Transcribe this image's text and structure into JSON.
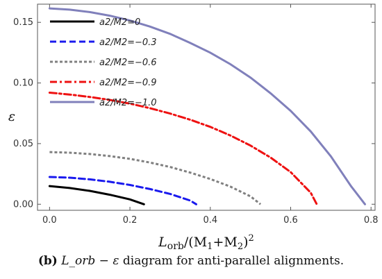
{
  "chart_data": {
    "type": "line",
    "xlabel": "L_orb/(M1+M2)^2",
    "ylabel": "ε",
    "xlim": [
      -0.03,
      0.81
    ],
    "ylim": [
      -0.005,
      0.165
    ],
    "xticks": [
      0.0,
      0.2,
      0.4,
      0.6,
      0.8
    ],
    "xtick_labels": [
      "0.0",
      "0.2",
      "0.4",
      "0.6",
      "0.8"
    ],
    "yticks": [
      0.0,
      0.05,
      0.1,
      0.15
    ],
    "ytick_labels": [
      "0.00",
      "0.05",
      "0.10",
      "0.15"
    ],
    "legend_position": "top-left",
    "series": [
      {
        "name": "a2/M2=0",
        "color": "#000000",
        "dash": "solid",
        "x": [
          0.0,
          0.05,
          0.1,
          0.15,
          0.2,
          0.235
        ],
        "y": [
          0.015,
          0.0134,
          0.011,
          0.0078,
          0.004,
          0.0
        ]
      },
      {
        "name": "a2/M2=−0.3",
        "color": "#1a1aee",
        "dash": "dashed",
        "x": [
          0.0,
          0.05,
          0.1,
          0.15,
          0.2,
          0.25,
          0.3,
          0.35,
          0.365
        ],
        "y": [
          0.0225,
          0.0219,
          0.0205,
          0.0185,
          0.0159,
          0.0125,
          0.0085,
          0.003,
          0.0
        ]
      },
      {
        "name": "a2/M2=−0.6",
        "color": "#808080",
        "dash": "dotted",
        "x": [
          0.0,
          0.05,
          0.1,
          0.15,
          0.2,
          0.25,
          0.3,
          0.35,
          0.4,
          0.45,
          0.5,
          0.525
        ],
        "y": [
          0.043,
          0.0425,
          0.0414,
          0.0397,
          0.0374,
          0.0344,
          0.0307,
          0.0261,
          0.0208,
          0.0145,
          0.0065,
          0.0
        ]
      },
      {
        "name": "a2/M2=−0.9",
        "color": "#ee1111",
        "dash": "dashdot",
        "x": [
          0.0,
          0.05,
          0.1,
          0.15,
          0.2,
          0.25,
          0.3,
          0.35,
          0.4,
          0.45,
          0.5,
          0.55,
          0.6,
          0.65,
          0.665
        ],
        "y": [
          0.092,
          0.0905,
          0.0885,
          0.086,
          0.083,
          0.0792,
          0.0748,
          0.0697,
          0.0638,
          0.0567,
          0.0484,
          0.0385,
          0.0265,
          0.0095,
          0.0
        ]
      },
      {
        "name": "a2/M2=−1.0",
        "color": "#8080bb",
        "dash": "solid",
        "x": [
          0.0,
          0.05,
          0.1,
          0.15,
          0.2,
          0.25,
          0.3,
          0.35,
          0.4,
          0.45,
          0.5,
          0.55,
          0.6,
          0.65,
          0.7,
          0.75,
          0.785
        ],
        "y": [
          0.1615,
          0.1605,
          0.1585,
          0.1555,
          0.1515,
          0.1465,
          0.1405,
          0.133,
          0.125,
          0.1155,
          0.1045,
          0.0915,
          0.077,
          0.06,
          0.0395,
          0.015,
          0.0
        ]
      }
    ]
  },
  "caption": {
    "tag": "(b)",
    "math": "L_orb − ε",
    "text": "diagram for anti-parallel alignments."
  }
}
